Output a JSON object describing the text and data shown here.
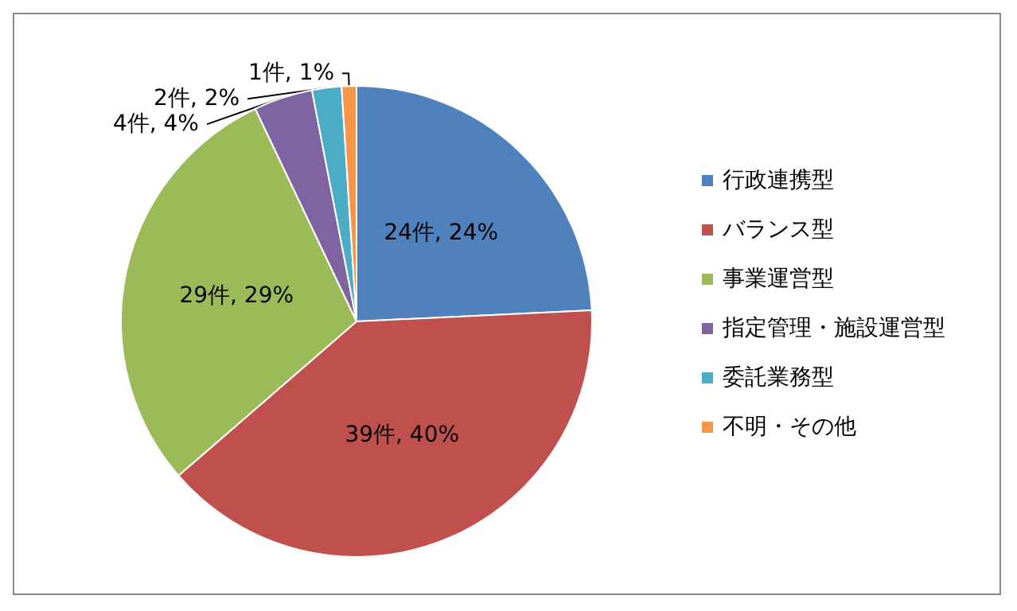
{
  "chart_data": {
    "type": "pie",
    "categories": [
      "行政連携型",
      "バランス型",
      "事業運営型",
      "指定管理・施設運営型",
      "委託業務型",
      "不明・その他"
    ],
    "values": [
      24,
      39,
      29,
      4,
      2,
      1
    ],
    "colors": [
      "#4f81bd",
      "#c0504d",
      "#9bbb59",
      "#8064a2",
      "#4bacc6",
      "#f79646"
    ],
    "value_labels": [
      "24件, 24%",
      "39件, 40%",
      "29件, 29%",
      "4件, 4%",
      "2件, 2%",
      "1件, 1%"
    ],
    "legend": "right"
  }
}
